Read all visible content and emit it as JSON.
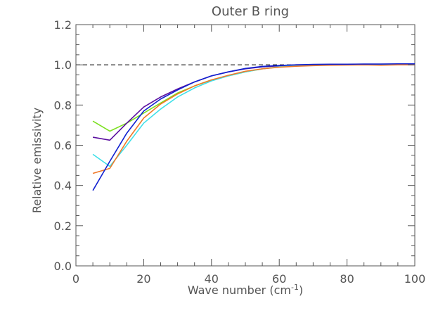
{
  "chart_data": {
    "type": "line",
    "title": "Outer B ring",
    "xlabel": "Wave number (cm",
    "xlabel_sup": "-1",
    "xlabel_close": ")",
    "ylabel": "Relative emissivity",
    "xlim": [
      0,
      100
    ],
    "ylim": [
      0.0,
      1.2
    ],
    "x_ticks": [
      "0",
      "20",
      "40",
      "60",
      "80",
      "100"
    ],
    "y_ticks": [
      "0.0",
      "0.2",
      "0.4",
      "0.6",
      "0.8",
      "1.0",
      "1.2"
    ],
    "x_tick_values": [
      0,
      20,
      40,
      60,
      80,
      100
    ],
    "y_tick_values": [
      0.0,
      0.2,
      0.4,
      0.6,
      0.8,
      1.0,
      1.2
    ],
    "reference_line": {
      "y": 1.0,
      "style": "dashed",
      "color": "#000000"
    },
    "grid": false,
    "x": [
      5,
      10,
      15,
      20,
      25,
      30,
      35,
      40,
      45,
      50,
      55,
      60,
      65,
      70,
      75,
      80,
      85,
      90,
      95,
      100
    ],
    "series": [
      {
        "color": "#7CE020",
        "values": [
          0.72,
          0.67,
          0.71,
          0.76,
          0.81,
          0.86,
          0.895,
          0.925,
          0.945,
          0.965,
          0.98,
          0.99,
          0.995,
          0.998,
          1.0,
          1.0,
          1.0,
          1.0,
          1.0,
          1.0
        ]
      },
      {
        "color": "#5B0FA0",
        "values": [
          0.64,
          0.625,
          0.71,
          0.79,
          0.84,
          0.88,
          0.915,
          0.945,
          0.965,
          0.98,
          0.99,
          0.995,
          1.0,
          1.0,
          1.0,
          1.0,
          1.0,
          1.0,
          1.0,
          1.005
        ]
      },
      {
        "color": "#40E0E8",
        "values": [
          0.555,
          0.495,
          0.6,
          0.71,
          0.78,
          0.84,
          0.885,
          0.92,
          0.945,
          0.965,
          0.98,
          0.99,
          0.995,
          1.0,
          1.0,
          1.0,
          1.0,
          1.0,
          1.0,
          1.0
        ]
      },
      {
        "color": "#F07828",
        "values": [
          0.46,
          0.485,
          0.62,
          0.735,
          0.805,
          0.855,
          0.895,
          0.925,
          0.948,
          0.968,
          0.98,
          0.988,
          0.993,
          0.996,
          0.998,
          0.999,
          1.0,
          0.998,
          1.0,
          1.0
        ]
      },
      {
        "color": "#1020D0",
        "values": [
          0.375,
          0.52,
          0.66,
          0.77,
          0.83,
          0.875,
          0.915,
          0.945,
          0.965,
          0.982,
          0.992,
          0.997,
          1.0,
          1.002,
          1.003,
          1.003,
          1.004,
          1.004,
          1.005,
          1.005
        ]
      }
    ]
  }
}
